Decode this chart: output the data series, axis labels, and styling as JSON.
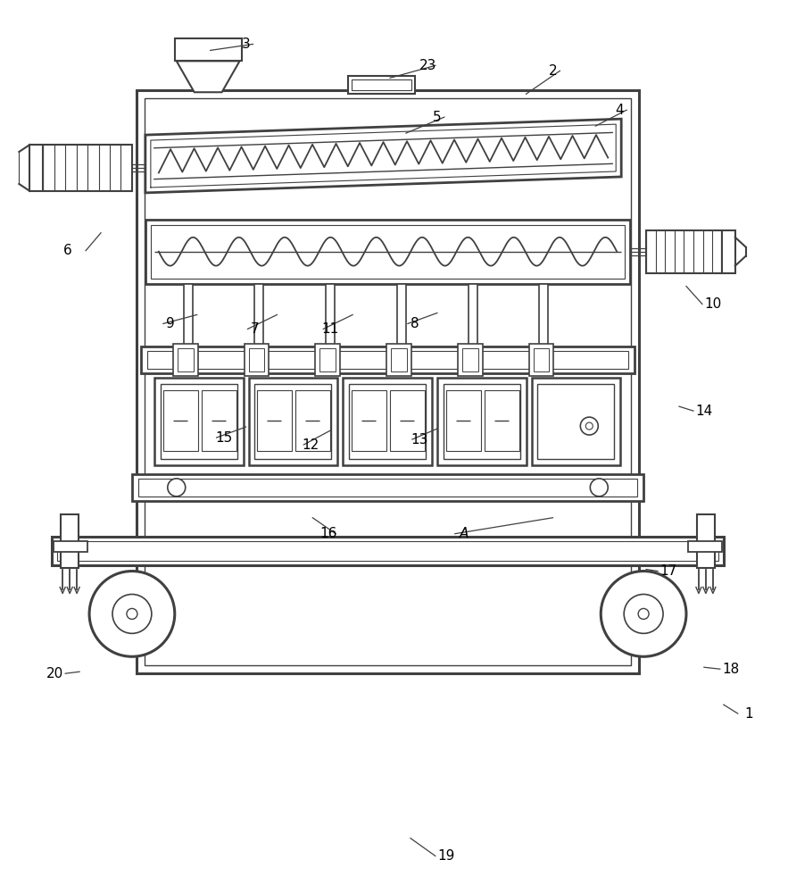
{
  "bg_color": "#ffffff",
  "lc": "#404040",
  "lw": 1.5,
  "fig_w": 8.83,
  "fig_h": 10.0,
  "dpi": 100
}
